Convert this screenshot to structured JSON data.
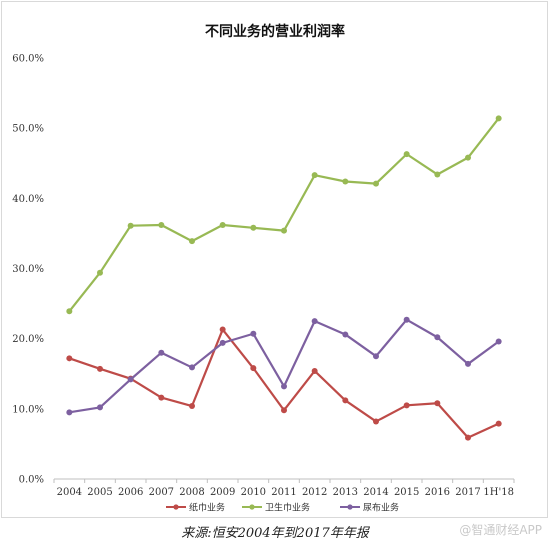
{
  "chart_data": {
    "type": "line",
    "title": "不同业务的营业利润率",
    "categories": [
      "2004",
      "2005",
      "2006",
      "2007",
      "2008",
      "2009",
      "2010",
      "2011",
      "2012",
      "2013",
      "2014",
      "2015",
      "2016",
      "2017",
      "1H'18"
    ],
    "y_ticks": [
      "0.0%",
      "10.0%",
      "20.0%",
      "30.0%",
      "40.0%",
      "50.0%",
      "60.0%"
    ],
    "ylim": [
      0,
      60
    ],
    "grid": false,
    "legend_position": "bottom",
    "series": [
      {
        "name": "纸巾业务",
        "color": "#be4b48",
        "values": [
          17.2,
          15.7,
          14.3,
          11.6,
          10.4,
          21.3,
          15.8,
          9.8,
          15.4,
          11.2,
          8.2,
          10.5,
          10.8,
          5.9,
          7.9
        ]
      },
      {
        "name": "卫生巾业务",
        "color": "#98b954",
        "values": [
          23.9,
          29.4,
          36.1,
          36.2,
          33.9,
          36.2,
          35.8,
          35.4,
          43.3,
          42.4,
          42.1,
          46.3,
          43.4,
          45.8,
          51.4
        ]
      },
      {
        "name": "尿布业务",
        "color": "#7d60a0",
        "values": [
          9.5,
          10.2,
          14.2,
          18.0,
          15.9,
          19.4,
          20.7,
          13.2,
          22.5,
          20.6,
          17.5,
          22.7,
          20.2,
          16.4,
          19.6
        ]
      }
    ]
  },
  "source_text": "来源:恒安2004年到2017年年报",
  "watermark": "@智通财经APP"
}
